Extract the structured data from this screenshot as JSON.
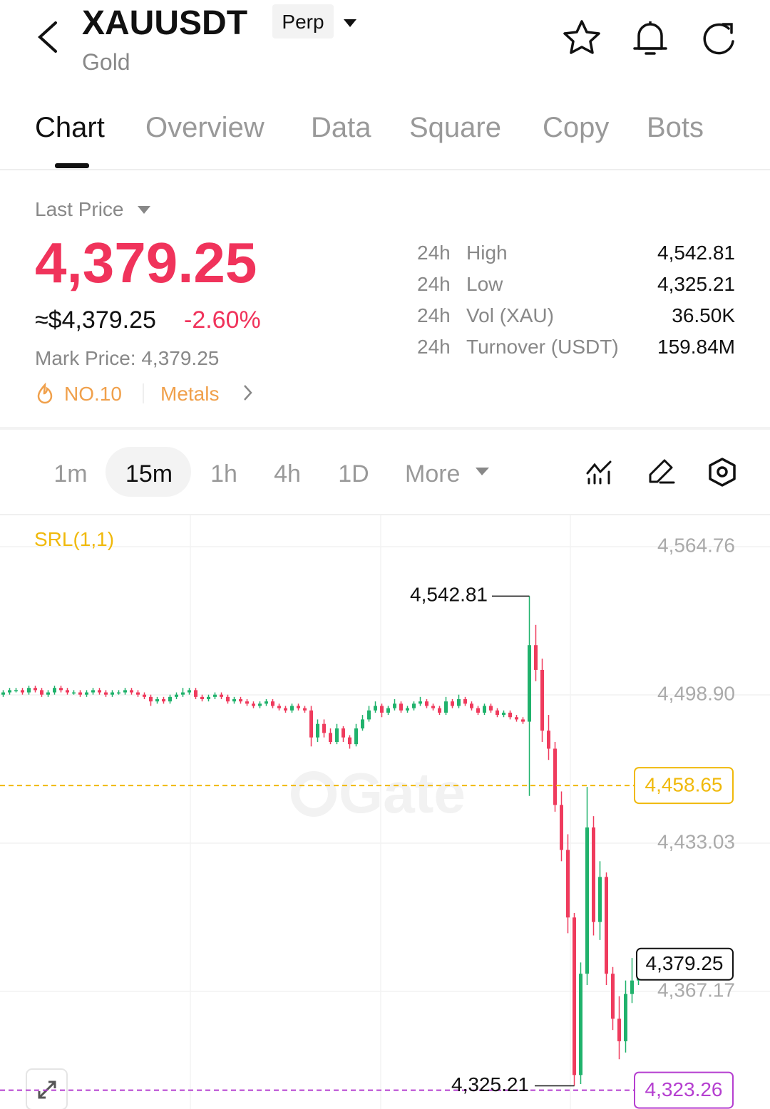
{
  "header": {
    "symbol": "XAUUSDT",
    "badge": "Perp",
    "name": "Gold"
  },
  "tabs": [
    "Chart",
    "Overview",
    "Data",
    "Square",
    "Copy",
    "Bots"
  ],
  "price": {
    "label": "Last Price",
    "last": "4,379.25",
    "approx": "≈$4,379.25",
    "change": "-2.60%",
    "mark": "Mark Price: 4,379.25",
    "rank": "NO.10",
    "sector": "Metals"
  },
  "stats": [
    [
      "24h",
      "High",
      "4,542.81"
    ],
    [
      "24h",
      "Low",
      "4,325.21"
    ],
    [
      "24h",
      "Vol (XAU)",
      "36.50K"
    ],
    [
      "24h",
      "Turnover (USDT)",
      "159.84M"
    ]
  ],
  "timeframes": [
    "1m",
    "15m",
    "1h",
    "4h",
    "1D"
  ],
  "more": "More",
  "chart_data": {
    "type": "candlestick",
    "indicator": "SRL(1,1)",
    "watermark": "Gate",
    "up_color": "#20b26c",
    "down_color": "#ef3b5d",
    "ylim": [
      4314.9,
      4578.7
    ],
    "yticks": [
      {
        "value": 4564.76,
        "label": "4,564.76"
      },
      {
        "value": 4498.9,
        "label": "4,498.90"
      },
      {
        "value": 4433.03,
        "label": "4,433.03"
      },
      {
        "value": 4367.17,
        "label": "4,367.17"
      }
    ],
    "high_marker": {
      "value": 4542.81,
      "label": "4,542.81"
    },
    "low_marker": {
      "value": 4325.21,
      "label": "4,325.21"
    },
    "last_marker": {
      "value": 4379.25,
      "label": "4,379.25"
    },
    "price_lines": [
      {
        "value": 4458.65,
        "label": "4,458.65",
        "color": "#f0b90b"
      },
      {
        "value": 4323.26,
        "label": "4,323.26",
        "color": "#b53fd0"
      }
    ],
    "open": [
      4499,
      4500,
      4501,
      4501,
      4500,
      4502,
      4501,
      4499,
      4500,
      4502,
      4501,
      4500,
      4500,
      4499,
      4500,
      4501,
      4500,
      4499,
      4500,
      4500,
      4501,
      4500,
      4499,
      4498,
      4496,
      4497,
      4496,
      4498,
      4499,
      4500,
      4501,
      4498,
      4497,
      4498,
      4499,
      4498,
      4496,
      4497,
      4496,
      4495,
      4494,
      4495,
      4496,
      4494,
      4493,
      4492,
      4494,
      4493,
      4492,
      4480,
      4486,
      4482,
      4478,
      4484,
      4480,
      4477,
      4484,
      4488,
      4492,
      4494,
      4491,
      4493,
      4495,
      4492,
      4493,
      4495,
      4496,
      4494,
      4493,
      4491,
      4496,
      4494,
      4497,
      4495,
      4493,
      4491,
      4494,
      4492,
      4490,
      4491,
      4489,
      4488,
      4487,
      4521,
      4510,
      4483,
      4475,
      4450,
      4430,
      4400,
      4330,
      4375,
      4440,
      4398,
      4418,
      4375,
      4355,
      4345,
      4366,
      4372
    ],
    "high": [
      4501,
      4502,
      4502,
      4502,
      4503,
      4503,
      4502,
      4501,
      4503,
      4503,
      4502,
      4501,
      4501,
      4501,
      4502,
      4502,
      4501,
      4501,
      4501,
      4502,
      4502,
      4501,
      4500,
      4499,
      4498,
      4498,
      4499,
      4500,
      4502,
      4502,
      4502,
      4499,
      4499,
      4500,
      4500,
      4499,
      4498,
      4498,
      4497,
      4496,
      4496,
      4497,
      4497,
      4495,
      4494,
      4495,
      4495,
      4494,
      4494,
      4488,
      4488,
      4484,
      4486,
      4485,
      4481,
      4486,
      4490,
      4494,
      4496,
      4495,
      4494,
      4497,
      4496,
      4494,
      4496,
      4498,
      4497,
      4495,
      4494,
      4498,
      4497,
      4499,
      4498,
      4496,
      4494,
      4495,
      4495,
      4493,
      4492,
      4492,
      4490,
      4489,
      4542.81,
      4530,
      4515,
      4490,
      4478,
      4456,
      4437,
      4402,
      4380,
      4458,
      4445,
      4425,
      4420,
      4378,
      4365,
      4372,
      4382,
      4383
    ],
    "low": [
      4498,
      4499,
      4500,
      4499,
      4499,
      4500,
      4498,
      4498,
      4499,
      4500,
      4499,
      4499,
      4498,
      4498,
      4499,
      4499,
      4498,
      4498,
      4499,
      4499,
      4499,
      4498,
      4497,
      4494,
      4495,
      4495,
      4495,
      4497,
      4498,
      4499,
      4497,
      4496,
      4496,
      4497,
      4497,
      4495,
      4495,
      4495,
      4494,
      4493,
      4493,
      4494,
      4493,
      4492,
      4491,
      4491,
      4492,
      4491,
      4476,
      4478,
      4480,
      4477,
      4477,
      4478,
      4475,
      4476,
      4483,
      4487,
      4491,
      4489,
      4490,
      4492,
      4491,
      4491,
      4492,
      4494,
      4493,
      4492,
      4490,
      4490,
      4493,
      4493,
      4494,
      4492,
      4490,
      4490,
      4491,
      4489,
      4489,
      4488,
      4487,
      4486,
      4454,
      4505,
      4478,
      4470,
      4447,
      4425,
      4393,
      4325.21,
      4326,
      4370,
      4392,
      4390,
      4370,
      4350,
      4337,
      4340,
      4362,
      4370
    ],
    "close": [
      4500,
      4501,
      4501,
      4500,
      4502,
      4501,
      4499,
      4500,
      4502,
      4501,
      4500,
      4500,
      4499,
      4500,
      4501,
      4500,
      4499,
      4500,
      4500,
      4501,
      4500,
      4499,
      4498,
      4496,
      4497,
      4496,
      4498,
      4499,
      4500,
      4501,
      4498,
      4497,
      4498,
      4499,
      4498,
      4496,
      4497,
      4496,
      4495,
      4494,
      4495,
      4496,
      4494,
      4493,
      4492,
      4494,
      4493,
      4492,
      4480,
      4486,
      4482,
      4478,
      4484,
      4480,
      4477,
      4484,
      4488,
      4492,
      4494,
      4491,
      4493,
      4495,
      4492,
      4493,
      4495,
      4496,
      4494,
      4493,
      4491,
      4496,
      4494,
      4497,
      4495,
      4493,
      4491,
      4494,
      4492,
      4490,
      4491,
      4489,
      4488,
      4487,
      4521,
      4510,
      4483,
      4475,
      4450,
      4430,
      4400,
      4330,
      4375,
      4440,
      4398,
      4418,
      4375,
      4355,
      4345,
      4366,
      4372,
      4379.25
    ]
  }
}
